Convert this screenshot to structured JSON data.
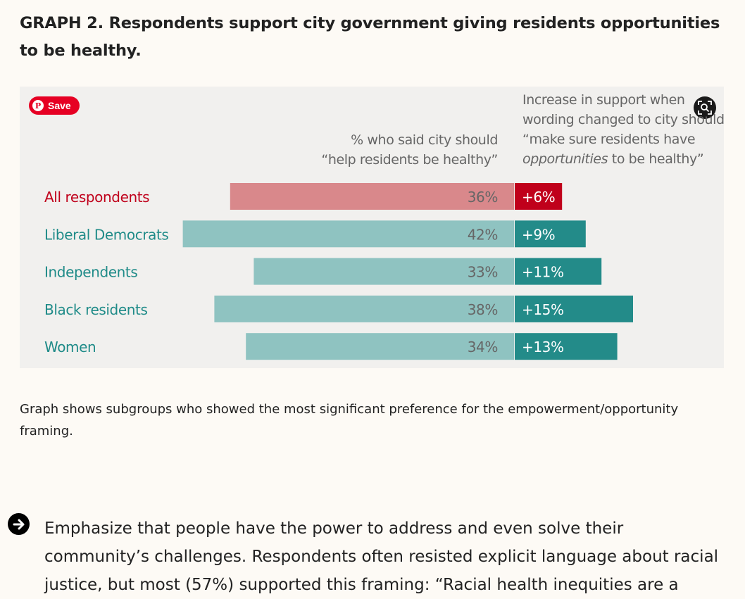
{
  "heading": "GRAPH 2. Respondents support city government giving residents opportunities to be healthy.",
  "save_button": {
    "label": "Save",
    "icon": "pinterest-icon"
  },
  "lens_button": {
    "icon": "visual-search-icon"
  },
  "column_headers": {
    "base_line1": "% who said city should",
    "base_line2": "“help residents be healthy”",
    "increase_line1": "Increase in support when",
    "increase_line2": "wording changed to city should",
    "increase_line3": "“make sure residents have",
    "increase_line4_italic": "opportunities",
    "increase_line4_rest": " to be healthy”"
  },
  "chart_data": {
    "type": "bar",
    "orientation": "horizontal",
    "stacked": true,
    "categories": [
      "All respondents",
      "Liberal Democrats",
      "Independents",
      "Black residents",
      "Women"
    ],
    "series": [
      {
        "values": [
          36,
          42,
          33,
          38,
          34
        ],
        "labels": [
          "36%",
          "42%",
          "33%",
          "38%",
          "34%"
        ]
      },
      {
        "values": [
          6,
          9,
          11,
          15,
          13
        ],
        "labels": [
          "+6%",
          "+9%",
          "+11%",
          "+15%",
          "+13%"
        ]
      }
    ],
    "highlight_category": "All respondents",
    "colors": {
      "base_highlight": "#d9888b",
      "increase_highlight": "#c0001b",
      "base": "#8fc3c1",
      "increase": "#238b89",
      "category_highlight": "#c0001b",
      "category": "#1f8b88",
      "base_label": "#666666",
      "increase_label": "#ffffff"
    }
  },
  "caption": "Graph shows subgroups who showed the most significant preference for the empowerment/opportunity framing.",
  "body_text": "Emphasize that people have the power to address and even solve their community’s challenges. Respondents often resisted explicit language about racial justice, but most (57%) supported this framing: “Racial health inequities are a",
  "bullet_icon": "arrow-right-circle-icon"
}
